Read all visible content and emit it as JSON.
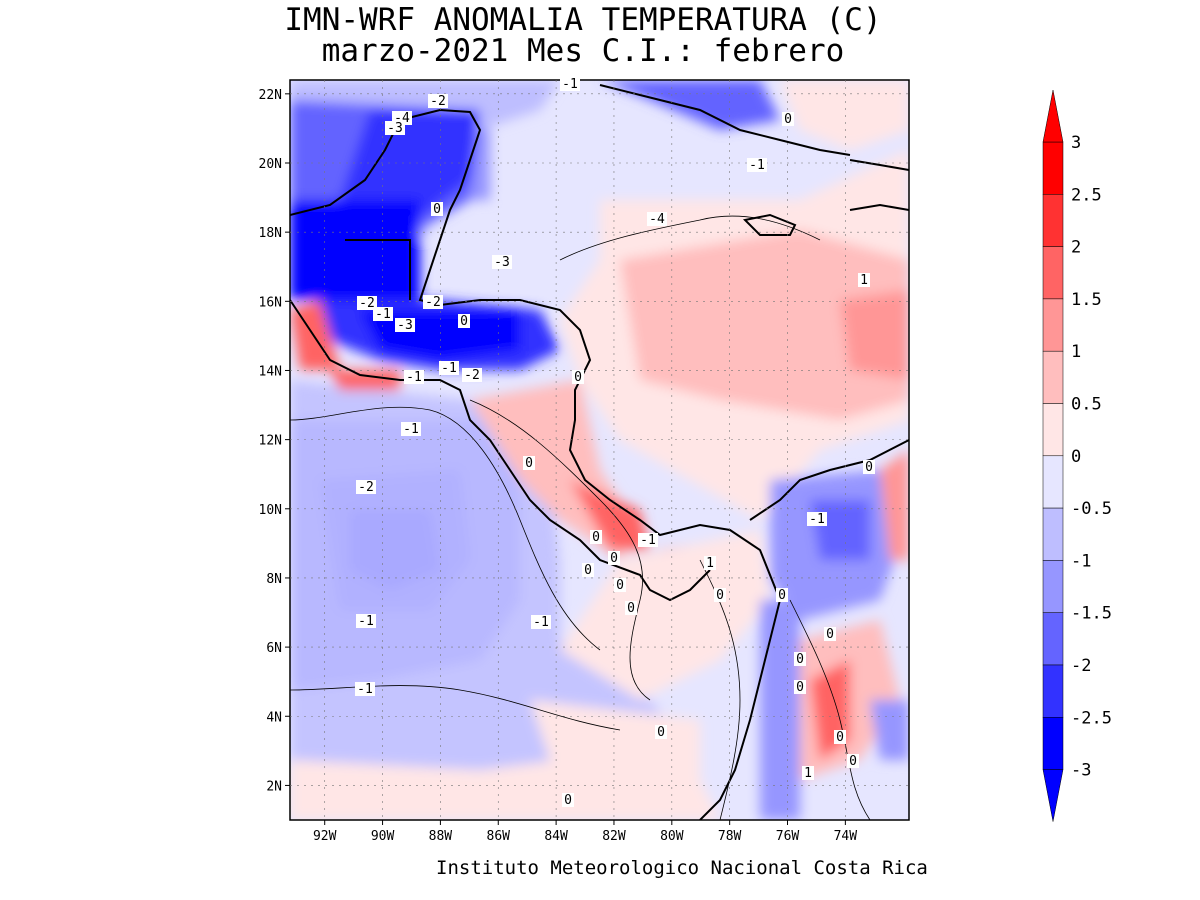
{
  "title": {
    "line1": "IMN-WRF  ANOMALIA TEMPERATURA (C)",
    "line2": "marzo-2021 Mes C.I.: febrero"
  },
  "credit": "Instituto Meteorologico Nacional Costa Rica",
  "map": {
    "lon_range": [
      -93.2,
      -71.8
    ],
    "lat_range": [
      1.0,
      22.4
    ],
    "x_tick_labels": [
      "92W",
      "90W",
      "88W",
      "86W",
      "84W",
      "82W",
      "80W",
      "78W",
      "76W",
      "74W"
    ],
    "y_tick_labels": [
      "22N",
      "20N",
      "18N",
      "16N",
      "14N",
      "12N",
      "10N",
      "8N",
      "6N",
      "4N",
      "2N"
    ],
    "contour_labels": [
      "-2",
      "-4",
      "-3",
      "-1",
      "0",
      "-1",
      "0",
      "-4",
      "-3",
      "-2",
      "-1",
      "-3",
      "0",
      "-2",
      "-1",
      "-1",
      "-2",
      "0",
      "0",
      "0",
      "1",
      "0",
      "0",
      "-1",
      "-1",
      "-2",
      "-1",
      "-1",
      "0",
      "0",
      "0",
      "0",
      "1",
      "0",
      "-1",
      "0",
      "0",
      "0",
      "0",
      "1",
      "0",
      "0",
      "0",
      "-1"
    ]
  },
  "colorbar": {
    "levels": [
      "3",
      "2.5",
      "2",
      "1.5",
      "1",
      "0.5",
      "0",
      "-0.5",
      "-1",
      "-1.5",
      "-2",
      "-2.5",
      "-3"
    ],
    "colors": [
      "#ff0000",
      "#ff3232",
      "#ff6464",
      "#ff9696",
      "#ffbebe",
      "#ffe6e6",
      "#e6e6ff",
      "#bebeff",
      "#9696ff",
      "#6464ff",
      "#3232ff",
      "#0000ff"
    ]
  }
}
